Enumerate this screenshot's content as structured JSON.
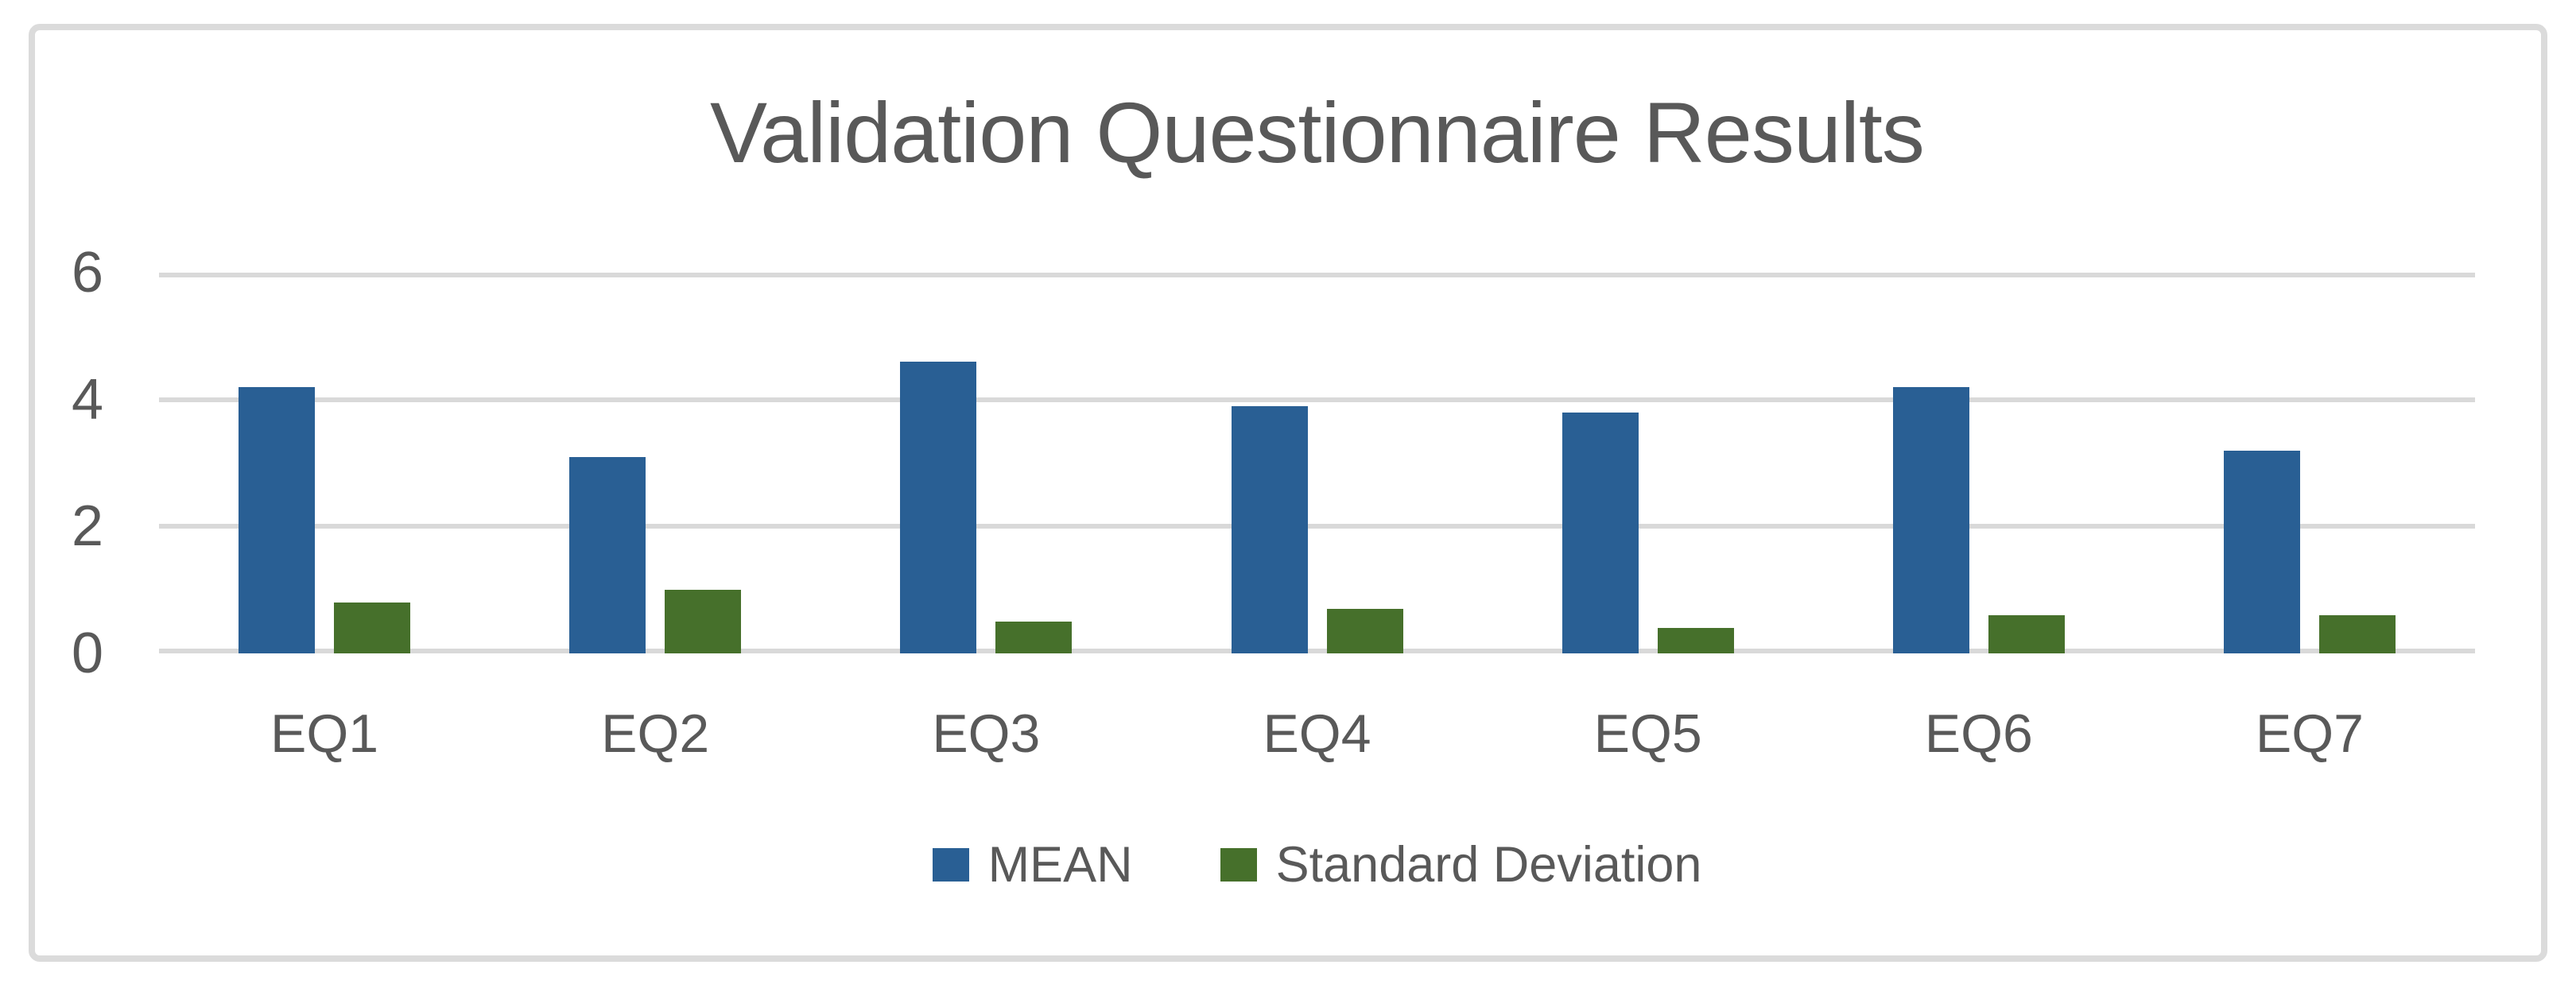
{
  "chart_data": {
    "type": "bar",
    "title": "Validation Questionnaire Results",
    "categories": [
      "EQ1",
      "EQ2",
      "EQ3",
      "EQ4",
      "EQ5",
      "EQ6",
      "EQ7"
    ],
    "series": [
      {
        "name": "MEAN",
        "color": "#295F94",
        "values": [
          4.2,
          3.1,
          4.6,
          3.9,
          3.8,
          4.2,
          3.2
        ]
      },
      {
        "name": "Standard Deviation",
        "color": "#46702B",
        "values": [
          0.8,
          1.0,
          0.5,
          0.7,
          0.4,
          0.6,
          0.6
        ]
      }
    ],
    "xlabel": "",
    "ylabel": "",
    "ylim": [
      0,
      6
    ],
    "yticks": [
      0,
      2,
      4,
      6
    ],
    "grid": true,
    "legend_position": "bottom"
  },
  "colors": {
    "frame_border": "#DBDBDB",
    "gridline": "#D9D9D9",
    "text": "#595959",
    "background": "#FFFFFF"
  }
}
